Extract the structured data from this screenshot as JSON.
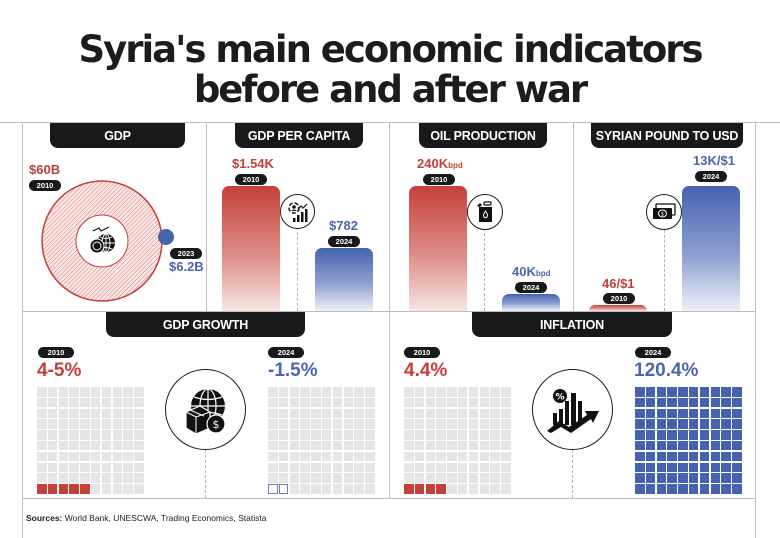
{
  "title": {
    "line1": "Syria's main economic indicators",
    "line2": "before and after war"
  },
  "panels": {
    "gdp": {
      "label": "GDP",
      "before": {
        "year": "2010",
        "value": "$60B"
      },
      "after": {
        "year": "2023",
        "value": "$6.2B"
      },
      "icon": "globe-coins-icon"
    },
    "gdp_per_capita": {
      "label": "GDP PER CAPITA",
      "before": {
        "year": "2010",
        "value": "$1.54K"
      },
      "after": {
        "year": "2024",
        "value": "$782"
      },
      "icon": "person-growth-chart-icon"
    },
    "oil_production": {
      "label": "OIL PRODUCTION",
      "before": {
        "year": "2010",
        "value": "240K",
        "unit": "bpd"
      },
      "after": {
        "year": "2024",
        "value": "40K",
        "unit": "bpd"
      },
      "icon": "oil-canister-icon"
    },
    "pound_to_usd": {
      "label": "SYRIAN POUND TO USD",
      "before": {
        "year": "2010",
        "value": "46/$1"
      },
      "after": {
        "year": "2024",
        "value": "13K/$1"
      },
      "icon": "banknote-icon"
    },
    "gdp_growth": {
      "label": "GDP GROWTH",
      "before": {
        "year": "2010",
        "value": "4-5%",
        "filled_cells": 5
      },
      "after": {
        "year": "2024",
        "value": "-1.5%",
        "outlined_cells": 2
      },
      "icon": "globe-package-dollar-icon"
    },
    "inflation": {
      "label": "INFLATION",
      "before": {
        "year": "2010",
        "value": "4.4%",
        "filled_cells": 4
      },
      "after": {
        "year": "2024",
        "value": "120.4%",
        "filled_cells": 100
      },
      "icon": "percent-chart-arrow-icon"
    }
  },
  "sources": {
    "label": "Sources:",
    "text": "World Bank, UNESCWA, Trading Economics, Statista"
  },
  "colors": {
    "before_red": "#c2403a",
    "after_blue": "#4a66ad",
    "tab_dark": "#17191a",
    "waffle_empty": "#e6e6e6"
  },
  "chart_data": [
    {
      "type": "bar",
      "title": "GDP",
      "categories": [
        "2010",
        "2023"
      ],
      "values": [
        60,
        6.2
      ],
      "unit": "USD billions",
      "labels": [
        "$60B",
        "$6.2B"
      ]
    },
    {
      "type": "bar",
      "title": "GDP PER CAPITA",
      "categories": [
        "2010",
        "2024"
      ],
      "values": [
        1540,
        782
      ],
      "unit": "USD",
      "labels": [
        "$1.54K",
        "$782"
      ]
    },
    {
      "type": "bar",
      "title": "OIL PRODUCTION",
      "categories": [
        "2010",
        "2024"
      ],
      "values": [
        240000,
        40000
      ],
      "unit": "bpd",
      "labels": [
        "240Kbpd",
        "40Kbpd"
      ]
    },
    {
      "type": "bar",
      "title": "SYRIAN POUND TO USD",
      "categories": [
        "2010",
        "2024"
      ],
      "values": [
        46,
        13000
      ],
      "unit": "SYP per $1",
      "labels": [
        "46/$1",
        "13K/$1"
      ]
    },
    {
      "type": "waffle",
      "title": "GDP GROWTH",
      "categories": [
        "2010",
        "2024"
      ],
      "values": [
        4.5,
        -1.5
      ],
      "labels": [
        "4-5%",
        "-1.5%"
      ],
      "grid": "10x10"
    },
    {
      "type": "waffle",
      "title": "INFLATION",
      "categories": [
        "2010",
        "2024"
      ],
      "values": [
        4.4,
        120.4
      ],
      "labels": [
        "4.4%",
        "120.4%"
      ],
      "grid": "10x10"
    }
  ]
}
